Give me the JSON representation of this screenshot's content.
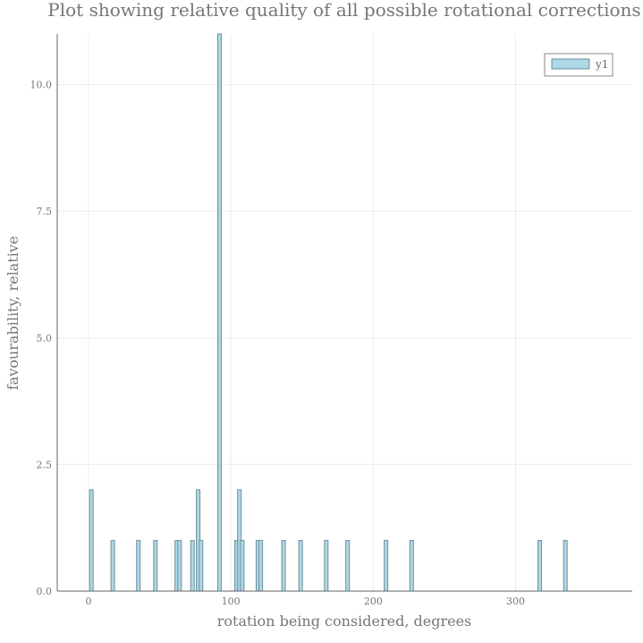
{
  "chart_data": {
    "type": "bar",
    "title": "Plot showing relative quality of all possible rotational corrections",
    "xlabel": "rotation being considered, degrees",
    "ylabel": "favourability, relative",
    "xlim": [
      -22,
      382
    ],
    "ylim": [
      0,
      11
    ],
    "xticks": [
      0,
      100,
      200,
      300
    ],
    "xtick_labels": [
      "0",
      "100",
      "200",
      "300"
    ],
    "yticks": [
      0,
      2.5,
      5,
      7.5,
      10
    ],
    "ytick_labels": [
      "0.0",
      "2.5",
      "5.0",
      "7.5",
      "10.0"
    ],
    "grid": true,
    "legend_position": "top-right",
    "series": [
      {
        "name": "y1",
        "color": "#add8e6",
        "x": [
          2,
          17,
          35,
          47,
          62,
          64,
          73,
          77,
          79,
          92,
          104,
          106,
          108,
          119,
          121,
          137,
          149,
          167,
          182,
          209,
          227,
          317,
          335
        ],
        "values": [
          2,
          1,
          1,
          1,
          1,
          1,
          1,
          2,
          1,
          11,
          1,
          2,
          1,
          1,
          1,
          1,
          1,
          1,
          1,
          1,
          1,
          1,
          1
        ]
      }
    ]
  }
}
